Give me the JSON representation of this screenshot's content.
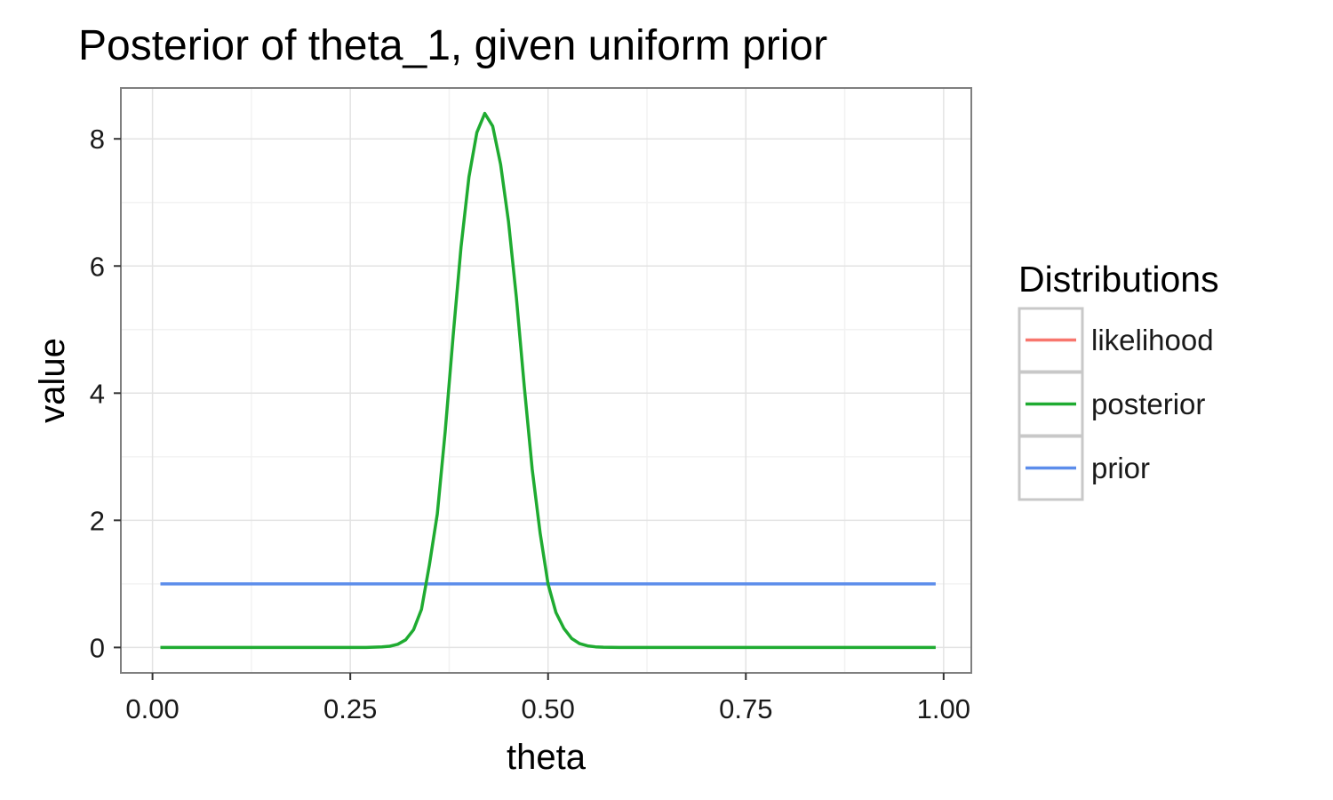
{
  "chart_data": {
    "type": "line",
    "title": "Posterior of theta_1, given uniform prior",
    "xlabel": "theta",
    "ylabel": "value",
    "xlim": [
      -0.04,
      1.035
    ],
    "ylim": [
      -0.4,
      8.8
    ],
    "x_ticks": [
      0.0,
      0.25,
      0.5,
      0.75,
      1.0
    ],
    "x_tick_labels": [
      "0.00",
      "0.25",
      "0.50",
      "0.75",
      "1.00"
    ],
    "y_ticks": [
      0,
      2,
      4,
      6,
      8
    ],
    "y_tick_labels": [
      "0",
      "2",
      "4",
      "6",
      "8"
    ],
    "grid": true,
    "legend": {
      "title": "Distributions",
      "position": "right",
      "entries": [
        {
          "label": "likelihood",
          "color": "#F8766D"
        },
        {
          "label": "posterior",
          "color": "#1FAB31"
        },
        {
          "label": "prior",
          "color": "#5C8DEB"
        }
      ]
    },
    "series": [
      {
        "name": "prior",
        "color": "#5C8DEB",
        "x": [
          0.01,
          0.99
        ],
        "y": [
          1.0,
          1.0
        ]
      },
      {
        "name": "posterior",
        "color": "#1FAB31",
        "x": [
          0.01,
          0.05,
          0.1,
          0.15,
          0.2,
          0.25,
          0.27,
          0.29,
          0.3,
          0.31,
          0.32,
          0.33,
          0.34,
          0.35,
          0.36,
          0.37,
          0.38,
          0.39,
          0.4,
          0.41,
          0.42,
          0.43,
          0.44,
          0.45,
          0.46,
          0.47,
          0.48,
          0.49,
          0.5,
          0.51,
          0.52,
          0.53,
          0.54,
          0.55,
          0.56,
          0.57,
          0.58,
          0.59,
          0.6,
          0.61,
          0.62,
          0.63,
          0.65,
          0.67,
          0.7,
          0.75,
          0.8,
          0.9,
          0.99
        ],
        "y": [
          0.0,
          0.0,
          0.0,
          0.0,
          0.0,
          0.0,
          0.0,
          0.01,
          0.02,
          0.05,
          0.12,
          0.28,
          0.6,
          1.3,
          2.1,
          3.4,
          4.9,
          6.3,
          7.4,
          8.1,
          8.4,
          8.2,
          7.6,
          6.7,
          5.5,
          4.1,
          2.8,
          1.8,
          1.0,
          0.55,
          0.3,
          0.14,
          0.06,
          0.025,
          0.01,
          0.004,
          0.001,
          0.0,
          0.0,
          0.0,
          0.0,
          0.0,
          0.0,
          0.0,
          0.0,
          0.0,
          0.0,
          0.0,
          0.0
        ]
      }
    ]
  }
}
